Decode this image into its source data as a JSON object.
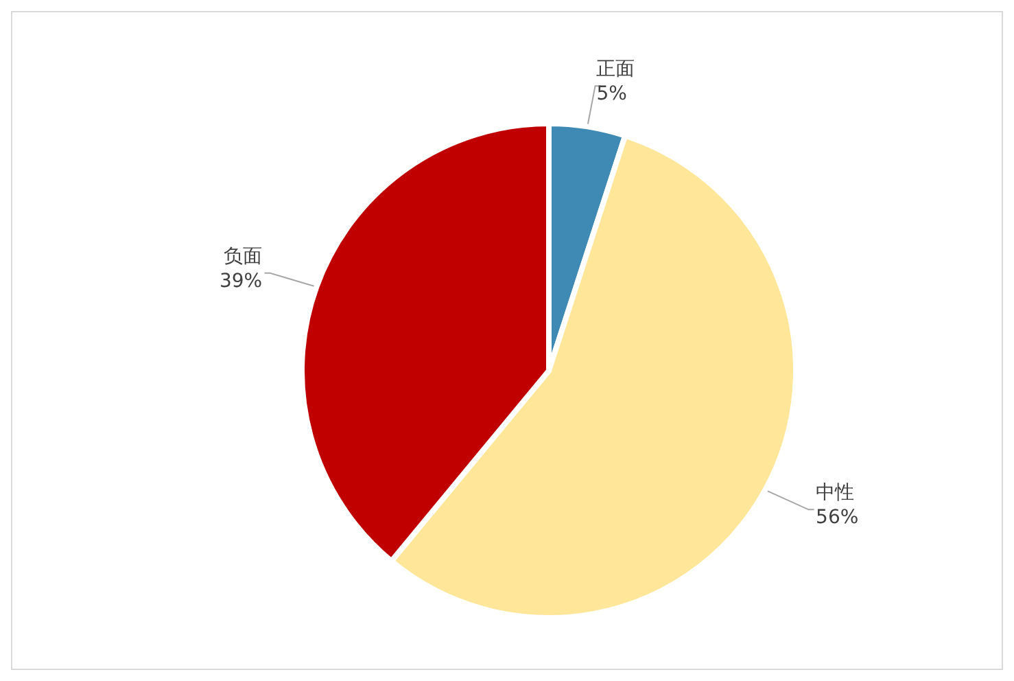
{
  "chart_data": {
    "type": "pie",
    "categories": [
      "正面",
      "中性",
      "负面"
    ],
    "values": [
      5,
      56,
      39
    ],
    "value_labels": [
      "5%",
      "56%",
      "39%"
    ],
    "colors": [
      "#3f8ab5",
      "#ffe699",
      "#c00000"
    ],
    "legend": false
  }
}
